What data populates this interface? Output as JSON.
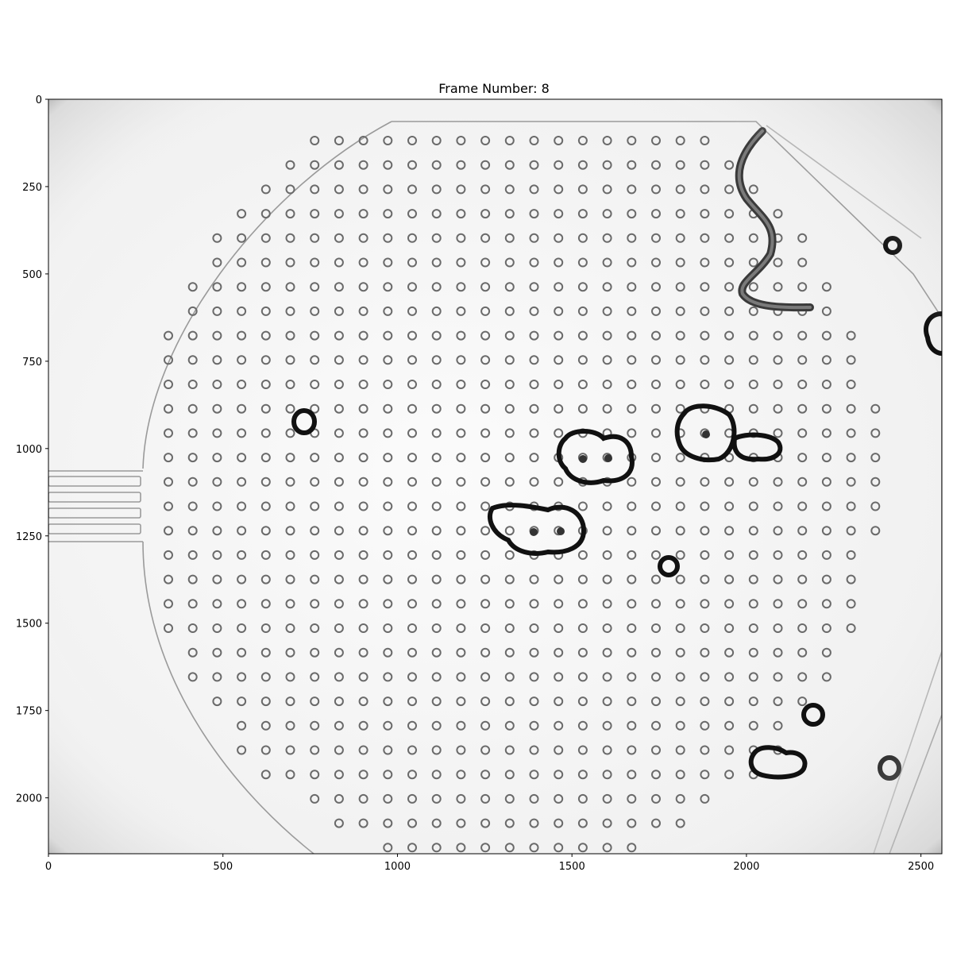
{
  "figure": {
    "title": "Frame Number: 8"
  },
  "axes": {
    "x_ticks": [
      "0",
      "500",
      "1000",
      "1500",
      "2000",
      "2500"
    ],
    "y_ticks": [
      "0",
      "250",
      "500",
      "750",
      "1000",
      "1250",
      "1500",
      "1750",
      "2000"
    ]
  },
  "image": {
    "content": "grayscale microscopy frame: microfluidic arena with pillar array, worm, air bubbles",
    "x_range": [
      0,
      2560
    ],
    "y_range": [
      0,
      2160
    ]
  }
}
